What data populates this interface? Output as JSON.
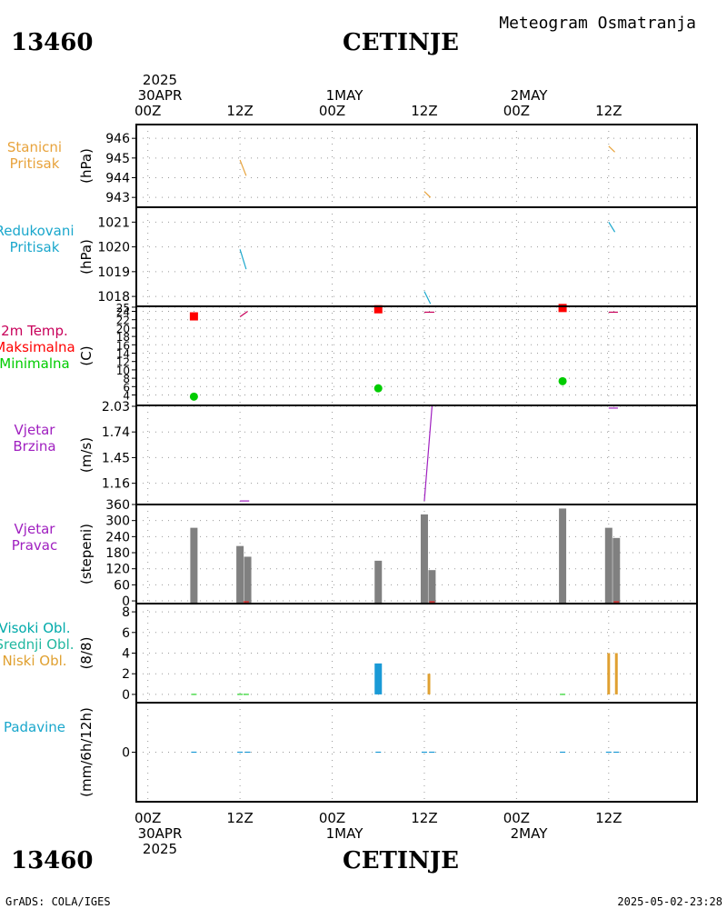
{
  "header": {
    "station_id": "13460",
    "station_name": "CETINJE",
    "chart_title": "Meteogram Osmatranja",
    "date_label": "2025",
    "first_day": "30APR",
    "days": [
      "1MAY",
      "2MAY"
    ]
  },
  "footer": {
    "station_id": "13460",
    "station_name": "CETINJE",
    "left_credit": "GrADS: COLA/IGES",
    "timestamp": "2025-05-02-23:28"
  },
  "time_axis": {
    "tick_labels": [
      "00Z",
      "12Z",
      "00Z",
      "12Z",
      "00Z",
      "12Z"
    ],
    "tick_hours": [
      0,
      12,
      24,
      36,
      48,
      60
    ],
    "range_hours": [
      -1.5,
      71.5
    ]
  },
  "colors": {
    "pressure": "#e8a33c",
    "reduced": "#1aa7cc",
    "temp_label": "#c8005a",
    "max": "#ff0000",
    "min": "#00cc00",
    "wind": "#a020c0",
    "bars": "#808080",
    "high_cloud": "#00aaaa",
    "mid_cloud": "#22b8a0",
    "low_cloud": "#e0a030",
    "precip": "#1a9ad6"
  },
  "panels": {
    "stanicni": {
      "label_lines": [
        "Stanicni",
        "Pritisak"
      ],
      "unit": "(hPa)"
    },
    "redukovani": {
      "label_lines": [
        "Redukovani",
        "Pritisak"
      ],
      "unit": "(hPa)"
    },
    "temp": {
      "label_lines": [
        "2m Temp.",
        "Maksimalna",
        "Minimalna"
      ],
      "unit": "(C)"
    },
    "brzina": {
      "label_lines": [
        "Vjetar",
        "Brzina"
      ],
      "unit": "(m/s)"
    },
    "pravac": {
      "label_lines": [
        "Vjetar",
        "Pravac"
      ],
      "unit": "(stepeni)"
    },
    "oblaci": {
      "label_lines": [
        "Visoki Obl.",
        "Srednji Obl.",
        "Niski Obl."
      ],
      "unit": "(8/8)"
    },
    "padavine": {
      "label_lines": [
        "Padavine"
      ],
      "unit": "(mm/6h/12h)"
    }
  },
  "chart_data": [
    {
      "type": "line",
      "id": "stanicni",
      "ylim": [
        942.5,
        946.7
      ],
      "ticks": [
        "943",
        "944",
        "945",
        "946"
      ],
      "tick_values": [
        943,
        944,
        945,
        946
      ],
      "segments": [
        [
          [
            12,
            944.9
          ],
          [
            12.8,
            944.1
          ]
        ],
        [
          [
            36,
            943.3
          ],
          [
            36.8,
            943.0
          ]
        ],
        [
          [
            60,
            945.6
          ],
          [
            60.8,
            945.3
          ]
        ]
      ]
    },
    {
      "type": "line",
      "id": "redukovani",
      "ylim": [
        1017.6,
        1021.6
      ],
      "ticks": [
        "1018",
        "1019",
        "1020",
        "1021"
      ],
      "tick_values": [
        1018,
        1019,
        1020,
        1021
      ],
      "segments": [
        [
          [
            12,
            1019.9
          ],
          [
            12.8,
            1019.1
          ]
        ],
        [
          [
            36,
            1018.2
          ],
          [
            36.8,
            1017.7
          ]
        ],
        [
          [
            60,
            1021.0
          ],
          [
            60.8,
            1020.6
          ]
        ]
      ]
    },
    {
      "type": "scatter",
      "id": "temp",
      "ylim": [
        1.5,
        25.2
      ],
      "ticks": [
        "25",
        "24",
        "22",
        "20",
        "18",
        "16",
        "14",
        "12",
        "10",
        "8",
        "6",
        "4"
      ],
      "tick_values": [
        25,
        24,
        22,
        20,
        18,
        16,
        14,
        12,
        10,
        8,
        6,
        4
      ],
      "max_points": [
        [
          6,
          22.8
        ],
        [
          30,
          24.5
        ],
        [
          54,
          24.8
        ]
      ],
      "min_points": [
        [
          6,
          3.6
        ],
        [
          30,
          5.6
        ],
        [
          54,
          7.3
        ]
      ],
      "segments": [
        [
          [
            12,
            22.7
          ],
          [
            13,
            24.0
          ]
        ],
        [
          [
            36,
            23.8
          ],
          [
            37.3,
            23.8
          ]
        ],
        [
          [
            60,
            23.8
          ],
          [
            61.2,
            23.8
          ]
        ]
      ]
    },
    {
      "type": "line",
      "id": "brzina",
      "ylim": [
        0.92,
        2.04
      ],
      "ticks": [
        "2.03",
        "1.74",
        "1.45",
        "1.16"
      ],
      "tick_values": [
        2.03,
        1.74,
        1.45,
        1.16
      ],
      "segments": [
        [
          [
            12,
            0.96
          ],
          [
            13.2,
            0.96
          ]
        ],
        [
          [
            36,
            0.96
          ],
          [
            37,
            2.03
          ]
        ],
        [
          [
            60,
            2.01
          ],
          [
            61.2,
            2.01
          ]
        ]
      ]
    },
    {
      "type": "bar",
      "id": "pravac",
      "ylim": [
        -10,
        360
      ],
      "ticks": [
        "360",
        "300",
        "240",
        "180",
        "120",
        "60",
        "0"
      ],
      "tick_values": [
        360,
        300,
        240,
        180,
        120,
        60,
        0
      ],
      "bars": [
        {
          "t": 6,
          "v": 273
        },
        {
          "t": 12,
          "v": 205
        },
        {
          "t": 13,
          "v": 165
        },
        {
          "t": 30,
          "v": 150
        },
        {
          "t": 36,
          "v": 323
        },
        {
          "t": 37,
          "v": 115
        },
        {
          "t": 54,
          "v": 345
        },
        {
          "t": 60,
          "v": 273
        },
        {
          "t": 61,
          "v": 235
        }
      ]
    },
    {
      "type": "bar",
      "id": "oblaci",
      "ylim": [
        -0.8,
        8.8
      ],
      "ticks": [
        "8",
        "6",
        "4",
        "2",
        "0"
      ],
      "tick_values": [
        8,
        6,
        4,
        2,
        0
      ],
      "mid_bars": [
        {
          "t": 30,
          "v": 3.0
        }
      ],
      "low_bars": [
        {
          "t": 36.6,
          "v": 2.0
        },
        {
          "t": 60,
          "v": 4.0
        },
        {
          "t": 61,
          "v": 4.0
        }
      ]
    },
    {
      "type": "bar",
      "id": "padavine",
      "ylim": [
        -5,
        5
      ],
      "ticks": [
        "0"
      ],
      "tick_values": [
        0
      ],
      "values": [
        {
          "t": 6,
          "v": 0
        },
        {
          "t": 12,
          "v": 0
        },
        {
          "t": 13,
          "v": 0
        },
        {
          "t": 30,
          "v": 0
        },
        {
          "t": 36,
          "v": 0
        },
        {
          "t": 37,
          "v": 0
        },
        {
          "t": 54,
          "v": 0
        },
        {
          "t": 60,
          "v": 0
        },
        {
          "t": 61,
          "v": 0
        }
      ]
    }
  ]
}
